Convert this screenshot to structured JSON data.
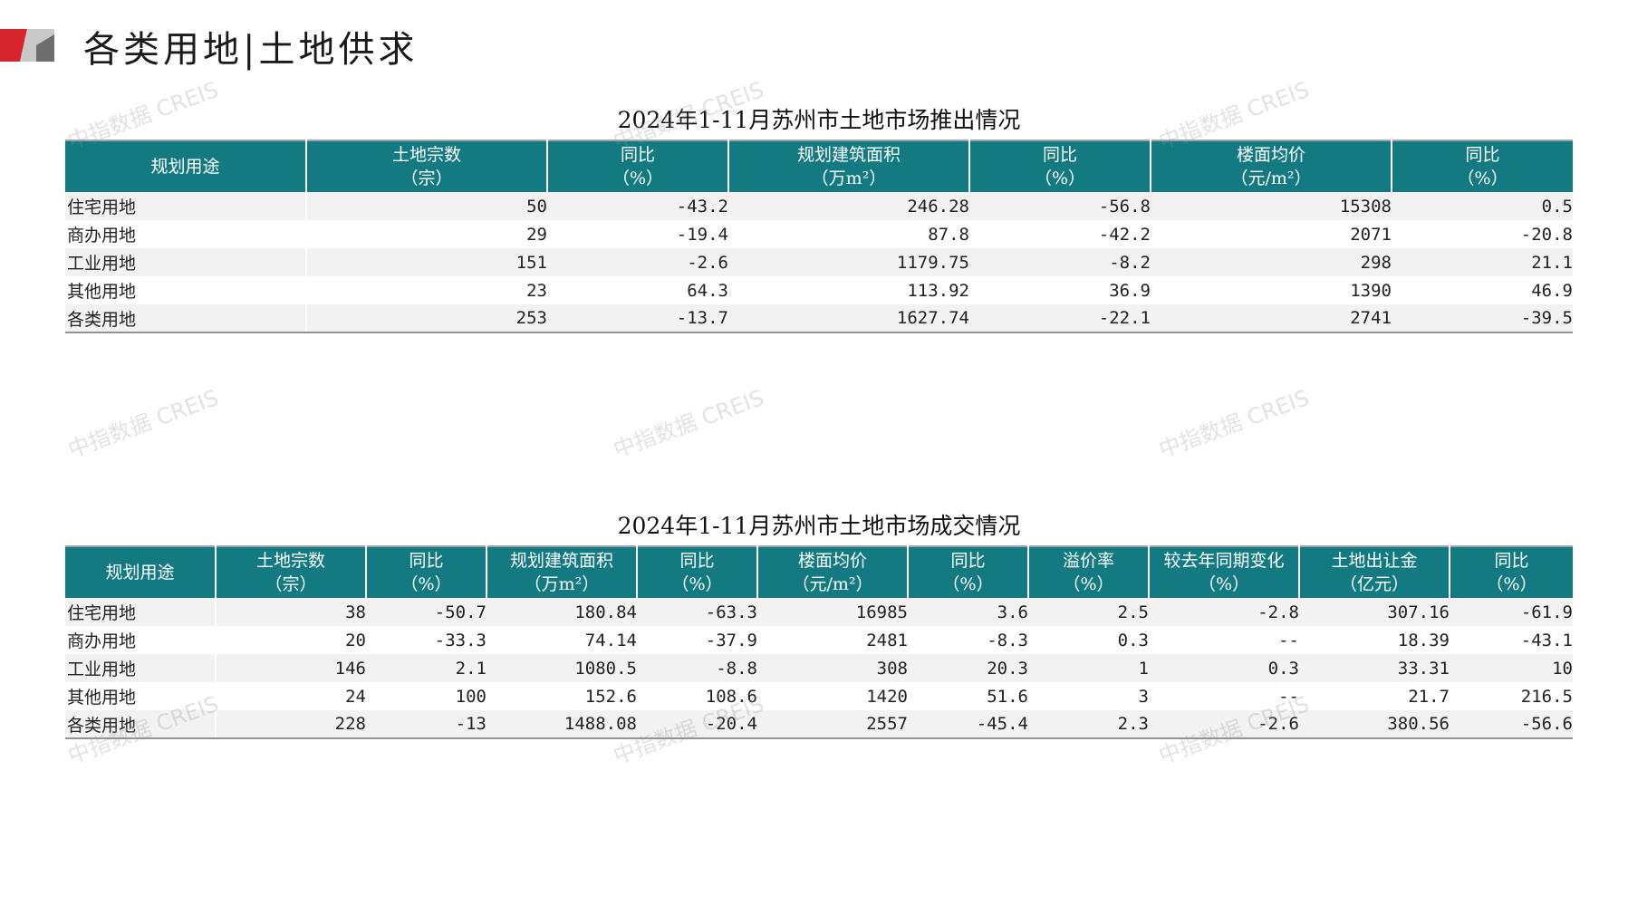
{
  "page": {
    "title": "各类用地|土地供求"
  },
  "watermark_text": "中指数据 CREIS",
  "supply_table": {
    "title": "2024年1-11月苏州市土地市场推出情况",
    "headers": [
      {
        "label": "规划用途",
        "unit": ""
      },
      {
        "label": "土地宗数",
        "unit": "（宗）"
      },
      {
        "label": "同比",
        "unit": "（%）"
      },
      {
        "label": "规划建筑面积",
        "unit": "（万m²）"
      },
      {
        "label": "同比",
        "unit": "（%）"
      },
      {
        "label": "楼面均价",
        "unit": "（元/m²）"
      },
      {
        "label": "同比",
        "unit": "（%）"
      }
    ],
    "rows": [
      [
        "住宅用地",
        "50",
        "-43.2",
        "246.28",
        "-56.8",
        "15308",
        "0.5"
      ],
      [
        "商办用地",
        "29",
        "-19.4",
        "87.8",
        "-42.2",
        "2071",
        "-20.8"
      ],
      [
        "工业用地",
        "151",
        "-2.6",
        "1179.75",
        "-8.2",
        "298",
        "21.1"
      ],
      [
        "其他用地",
        "23",
        "64.3",
        "113.92",
        "36.9",
        "1390",
        "46.9"
      ],
      [
        "各类用地",
        "253",
        "-13.7",
        "1627.74",
        "-22.1",
        "2741",
        "-39.5"
      ]
    ]
  },
  "deal_table": {
    "title": "2024年1-11月苏州市土地市场成交情况",
    "headers": [
      {
        "label": "规划用途",
        "unit": ""
      },
      {
        "label": "土地宗数",
        "unit": "（宗）"
      },
      {
        "label": "同比",
        "unit": "（%）"
      },
      {
        "label": "规划建筑面积",
        "unit": "（万m²）"
      },
      {
        "label": "同比",
        "unit": "（%）"
      },
      {
        "label": "楼面均价",
        "unit": "（元/m²）"
      },
      {
        "label": "同比",
        "unit": "（%）"
      },
      {
        "label": "溢价率",
        "unit": "（%）"
      },
      {
        "label": "较去年同期变化",
        "unit": "（%）"
      },
      {
        "label": "土地出让金",
        "unit": "（亿元）"
      },
      {
        "label": "同比",
        "unit": "（%）"
      }
    ],
    "rows": [
      [
        "住宅用地",
        "38",
        "-50.7",
        "180.84",
        "-63.3",
        "16985",
        "3.6",
        "2.5",
        "-2.8",
        "307.16",
        "-61.9"
      ],
      [
        "商办用地",
        "20",
        "-33.3",
        "74.14",
        "-37.9",
        "2481",
        "-8.3",
        "0.3",
        "--",
        "18.39",
        "-43.1"
      ],
      [
        "工业用地",
        "146",
        "2.1",
        "1080.5",
        "-8.8",
        "308",
        "20.3",
        "1",
        "0.3",
        "33.31",
        "10"
      ],
      [
        "其他用地",
        "24",
        "100",
        "152.6",
        "108.6",
        "1420",
        "51.6",
        "3",
        "--",
        "21.7",
        "216.5"
      ],
      [
        "各类用地",
        "228",
        "-13",
        "1488.08",
        "-20.4",
        "2557",
        "-45.4",
        "2.3",
        "-2.6",
        "380.56",
        "-56.6"
      ]
    ]
  },
  "colors": {
    "header_bg": "#127a80",
    "logo_red": "#d7262b",
    "logo_gray": "#b3b3b3"
  }
}
